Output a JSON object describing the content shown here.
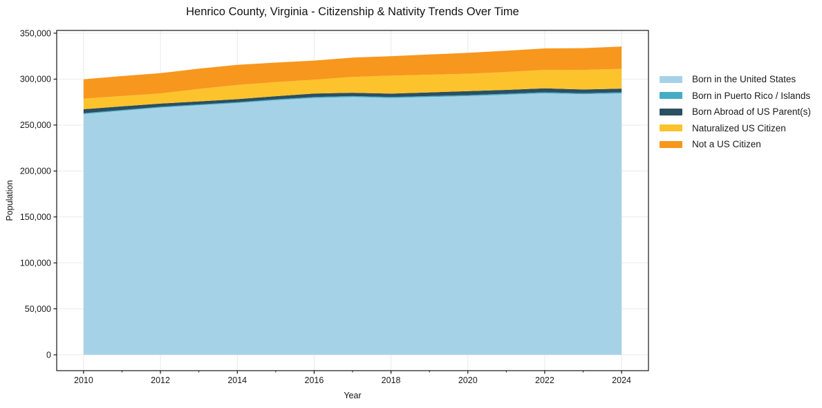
{
  "page": {
    "background": "#ffffff",
    "spine_color": "#000000",
    "grid_color": "#e9e9e9",
    "tick_label_color": "#1a1a1a"
  },
  "chart_data": {
    "type": "area",
    "stacked": true,
    "title": "Henrico County, Virginia - Citizenship & Nativity Trends Over Time",
    "xlabel": "Year",
    "ylabel": "Population",
    "grid": true,
    "legend_position": "right-outside",
    "x": [
      2010,
      2011,
      2012,
      2013,
      2014,
      2015,
      2016,
      2017,
      2018,
      2019,
      2020,
      2021,
      2022,
      2023,
      2024
    ],
    "series": [
      {
        "name": "Born in the United States",
        "color": "#a6d2e7",
        "values": [
          262000,
          265500,
          269000,
          271500,
          274000,
          277000,
          279500,
          280500,
          279500,
          280500,
          281500,
          283000,
          284500,
          283500,
          284500
        ]
      },
      {
        "name": "Born in Puerto Rico / Islands",
        "color": "#44acc5",
        "values": [
          900,
          950,
          900,
          1000,
          950,
          1000,
          1100,
          1050,
          1000,
          1100,
          1150,
          1100,
          1200,
          1150,
          1200
        ]
      },
      {
        "name": "Born Abroad of US Parent(s)",
        "color": "#2a4f63",
        "values": [
          4400,
          3900,
          3500,
          3300,
          3200,
          3400,
          3700,
          3600,
          3700,
          4000,
          4300,
          4200,
          4300,
          4100,
          4000
        ]
      },
      {
        "name": "Naturalized US Citizen",
        "color": "#fdc32d",
        "values": [
          11500,
          11200,
          11000,
          13500,
          15500,
          15300,
          15100,
          17300,
          19600,
          19200,
          18900,
          19500,
          20100,
          21300,
          21500
        ]
      },
      {
        "name": "Not a US Citizen",
        "color": "#f8971d",
        "values": [
          21000,
          21800,
          22100,
          22100,
          21900,
          21300,
          20800,
          21000,
          21100,
          22000,
          22800,
          23100,
          23300,
          23700,
          24300
        ]
      }
    ],
    "xticks": [
      2010,
      2012,
      2014,
      2016,
      2018,
      2020,
      2022,
      2024
    ],
    "xtick_labels": [
      "2010",
      "2012",
      "2014",
      "2016",
      "2018",
      "2020",
      "2022",
      "2024"
    ],
    "xticks_minor": [
      2011,
      2013,
      2015,
      2017,
      2019,
      2021,
      2023
    ],
    "yticks": [
      0,
      50000,
      100000,
      150000,
      200000,
      250000,
      300000,
      350000
    ],
    "ytick_labels": [
      "0",
      "50,000",
      "100,000",
      "150,000",
      "200,000",
      "250,000",
      "300,000",
      "350,000"
    ],
    "xlim": [
      2009.3,
      2024.7
    ],
    "ylim": [
      -17300,
      353000
    ]
  }
}
